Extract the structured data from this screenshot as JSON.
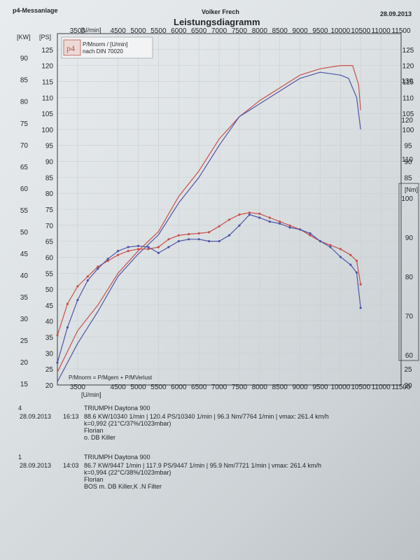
{
  "header": {
    "app_name": "p4-Messanlage",
    "operator": "Volker Frech",
    "date": "28.09.2013",
    "title": "Leistungsdiagramm"
  },
  "legend_box": {
    "logo": "p4",
    "line1": "P/Mnorm / [U/min]",
    "line2": "nach DIN 70020"
  },
  "formula": "P/Mnorm = P/Mgem + P/MVerlust",
  "colors": {
    "run4": "#c8504a",
    "run1": "#4c55a8",
    "grid": "#c9cdd1",
    "ink": "#23262c"
  },
  "chart_data": {
    "type": "line",
    "x_unit": "[U/min]",
    "x_ticks": [
      3500,
      4500,
      5000,
      5500,
      6000,
      6500,
      7000,
      7500,
      8000,
      8500,
      9000,
      9500,
      10000,
      10500,
      11000,
      11500
    ],
    "xlim": [
      3000,
      11500
    ],
    "axis_kw": {
      "unit": "[KW]",
      "ticks": [
        15,
        20,
        25,
        30,
        35,
        40,
        45,
        50,
        55,
        60,
        65,
        70,
        75,
        80,
        85,
        90
      ]
    },
    "axis_ps": {
      "unit": "[PS]",
      "ylim": [
        20,
        130
      ],
      "ticks": [
        20,
        25,
        30,
        35,
        40,
        45,
        50,
        55,
        60,
        65,
        70,
        75,
        80,
        85,
        90,
        95,
        100,
        105,
        110,
        115,
        120,
        125
      ]
    },
    "axis_ps_right": {
      "unit": "",
      "ticks": [
        20,
        25,
        30,
        35,
        40,
        45,
        50,
        55,
        60,
        65,
        70,
        75,
        80,
        85,
        90,
        95,
        100,
        105,
        110,
        115,
        120,
        125
      ]
    },
    "axis_nm": {
      "unit": "[Nm]",
      "ylim": [
        52.3,
        142
      ],
      "ticks": [
        60,
        70,
        80,
        90,
        100,
        110,
        120,
        130
      ]
    },
    "series": [
      {
        "name": "4",
        "quantity": "power",
        "x": [
          3000,
          3500,
          4000,
          4500,
          5000,
          5500,
          6000,
          6500,
          7000,
          7500,
          8000,
          8500,
          9000,
          9500,
          10000,
          10300,
          10450,
          10500
        ],
        "values": [
          24,
          37,
          45,
          55,
          62,
          68,
          79,
          87,
          97,
          104,
          109,
          113,
          117,
          119,
          120,
          120,
          114,
          106
        ]
      },
      {
        "name": "1",
        "quantity": "power",
        "x": [
          3000,
          3500,
          4000,
          4500,
          5000,
          5500,
          6000,
          6500,
          7000,
          7500,
          8000,
          8500,
          9000,
          9500,
          10000,
          10200,
          10400,
          10500
        ],
        "values": [
          21,
          33,
          43,
          54,
          61,
          67,
          77,
          85,
          95,
          104,
          108,
          112,
          116,
          117.9,
          117,
          116,
          110,
          100
        ]
      },
      {
        "name": "4",
        "quantity": "torque",
        "x": [
          3000,
          3250,
          3500,
          3750,
          4000,
          4250,
          4500,
          4750,
          5000,
          5250,
          5500,
          5750,
          6000,
          6250,
          6500,
          6750,
          7000,
          7250,
          7500,
          7750,
          8000,
          8250,
          8500,
          8750,
          9000,
          9250,
          9500,
          9750,
          10000,
          10250,
          10400,
          10500
        ],
        "values": [
          65,
          73,
          77.5,
          80,
          82.5,
          84,
          85.5,
          86.5,
          87,
          87,
          87.5,
          89.5,
          90.5,
          90.8,
          91,
          91.3,
          92.8,
          94.5,
          95.8,
          96.3,
          96,
          95,
          94,
          93,
          92,
          90.5,
          89,
          88,
          87,
          85.5,
          84,
          78
        ]
      },
      {
        "name": "1",
        "quantity": "torque",
        "x": [
          3000,
          3250,
          3500,
          3750,
          4000,
          4250,
          4500,
          4750,
          5000,
          5250,
          5500,
          5750,
          6000,
          6250,
          6500,
          6750,
          7000,
          7250,
          7500,
          7750,
          8000,
          8250,
          8500,
          8750,
          9000,
          9250,
          9500,
          9750,
          10000,
          10250,
          10400,
          10500
        ],
        "values": [
          58,
          67,
          74,
          79,
          82,
          84.5,
          86.5,
          87.5,
          87.8,
          87.5,
          86,
          87.5,
          89,
          89.5,
          89.5,
          89,
          89,
          90.5,
          93,
          95.8,
          95,
          94,
          93.5,
          92.5,
          92,
          91,
          89,
          87.5,
          85,
          83,
          81,
          72
        ]
      }
    ]
  },
  "runs": [
    {
      "num": "4",
      "date": "28.09.2013",
      "time": "16:13",
      "model": "TRIUMPH Daytona 900",
      "stats": "88.6 KW/10340 1/min  |  120.4 PS/10340 1/min  |  96.3 Nm/7764 1/min  |  vmax: 261.4 km/h",
      "conditions": "k=0,992 (21°C/37%/1023mbar)",
      "rider": "Florian",
      "note": "o. DB Killer"
    },
    {
      "num": "1",
      "date": "28.09.2013",
      "time": "14:03",
      "model": "TRIUMPH Daytona 900",
      "stats": "86.7 KW/9447 1/min  |  117.9 PS/9447 1/min  |  95.9 Nm/7721 1/min  |  vmax: 261.4 km/h",
      "conditions": "k=0,994 (22°C/38%/1023mbar)",
      "rider": "Florian",
      "note": "BOS m. DB Killer,K .N Filter"
    }
  ]
}
